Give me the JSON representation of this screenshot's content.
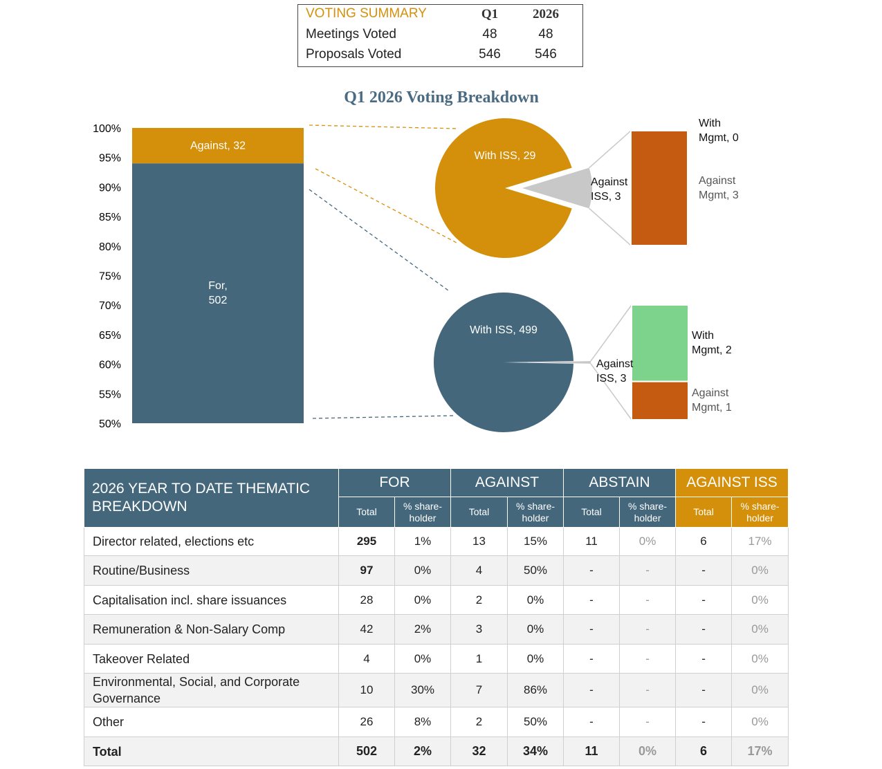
{
  "summary": {
    "title": "VOTING SUMMARY",
    "columns": [
      "Q1",
      "2026"
    ],
    "rows": [
      {
        "label": "Meetings Voted",
        "values": [
          48,
          48
        ]
      },
      {
        "label": "Proposals Voted",
        "values": [
          546,
          546
        ]
      }
    ]
  },
  "chart_data": {
    "type": "stacked-bar-pie",
    "title": "Q1 2026 Voting Breakdown",
    "ylim": [
      50,
      100
    ],
    "yticks": [
      {
        "value": 50,
        "label": "50%"
      },
      {
        "value": 55,
        "label": "55%"
      },
      {
        "value": 60,
        "label": "60%"
      },
      {
        "value": 65,
        "label": "65%"
      },
      {
        "value": 70,
        "label": "70%"
      },
      {
        "value": 75,
        "label": "75%"
      },
      {
        "value": 80,
        "label": "80%"
      },
      {
        "value": 85,
        "label": "85%"
      },
      {
        "value": 90,
        "label": "90%"
      },
      {
        "value": 95,
        "label": "95%"
      },
      {
        "value": 100,
        "label": "100%"
      }
    ],
    "bar": [
      {
        "value": 502,
        "label": "For,\n502",
        "color": "#44677c"
      },
      {
        "value": 32,
        "label": "Against, 32",
        "color": "#d4900a"
      }
    ],
    "pies": [
      {
        "slices": [
          {
            "value": 29,
            "label": "With ISS, 29",
            "color": "#d4900a"
          },
          {
            "value": 3,
            "label": "Against ISS, 3",
            "color": "#c8c8c8"
          }
        ],
        "breakdown": [
          {
            "value": 0,
            "label": "With Mgmt, 0",
            "color": "#7dd38c"
          },
          {
            "value": 3,
            "label": "Against Mgmt, 3",
            "color": "#c55a11"
          }
        ]
      },
      {
        "slices": [
          {
            "value": 499,
            "label": "With ISS, 499",
            "color": "#44677c"
          },
          {
            "value": 3,
            "label": "Against ISS, 3",
            "color": "#c8c8c8"
          }
        ],
        "breakdown": [
          {
            "value": 2,
            "label": "With Mgmt, 2",
            "color": "#7dd38c"
          },
          {
            "value": 1,
            "label": "Against Mgmt, 1",
            "color": "#c55a11"
          }
        ]
      }
    ]
  },
  "table": {
    "title": "2026 YEAR TO DATE THEMATIC BREAKDOWN",
    "groups": [
      "FOR",
      "AGAINST",
      "ABSTAIN",
      "AGAINST ISS"
    ],
    "subheaders": [
      "Total",
      "% share-holder"
    ],
    "rows": [
      [
        "Director related, elections etc",
        "295",
        "1%",
        "13",
        "15%",
        "11",
        "0%",
        "6",
        "17%"
      ],
      [
        "Routine/Business",
        "97",
        "0%",
        "4",
        "50%",
        "-",
        "-",
        "-",
        "0%"
      ],
      [
        "Capitalisation incl. share issuances",
        "28",
        "0%",
        "2",
        "0%",
        "-",
        "-",
        "-",
        "0%"
      ],
      [
        "Remuneration & Non-Salary Comp",
        "42",
        "2%",
        "3",
        "0%",
        "-",
        "-",
        "-",
        "0%"
      ],
      [
        "Takeover Related",
        "4",
        "0%",
        "1",
        "0%",
        "-",
        "-",
        "-",
        "0%"
      ],
      [
        "Environmental, Social, and Corporate Governance",
        "10",
        "30%",
        "7",
        "86%",
        "-",
        "-",
        "-",
        "0%"
      ],
      [
        "Other",
        "26",
        "8%",
        "2",
        "50%",
        "-",
        "-",
        "-",
        "0%"
      ],
      [
        "Total",
        "502",
        "2%",
        "32",
        "34%",
        "11",
        "0%",
        "6",
        "17%"
      ]
    ]
  }
}
